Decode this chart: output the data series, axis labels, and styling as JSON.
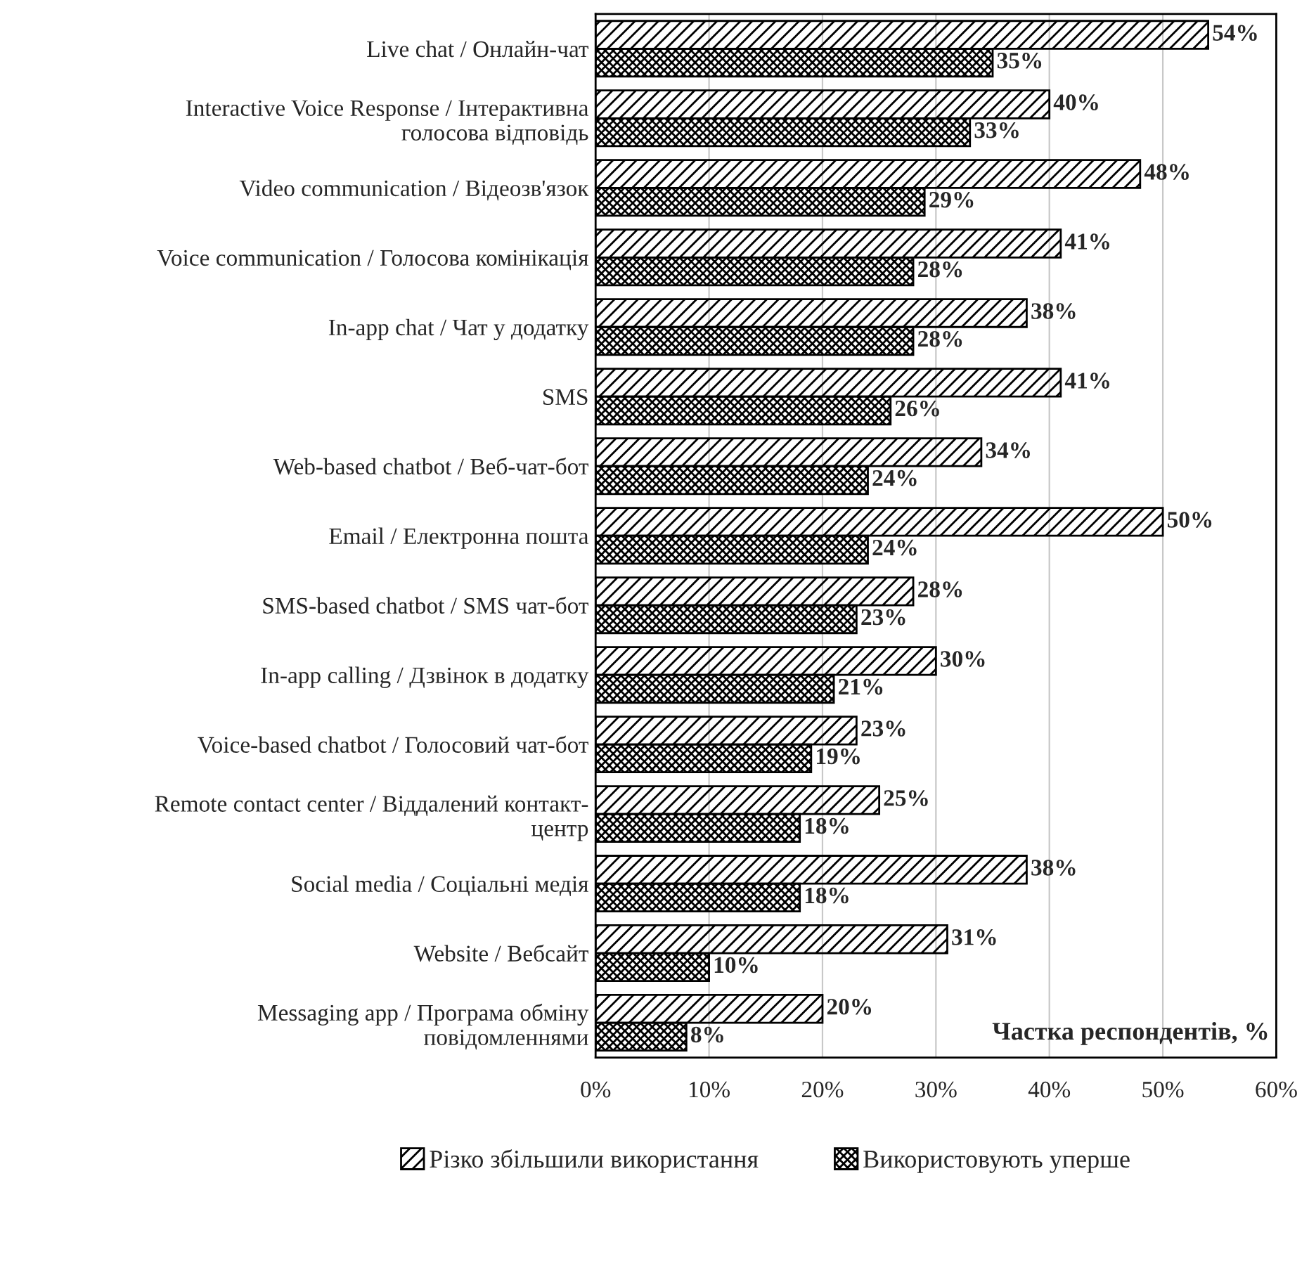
{
  "chart_data": {
    "type": "bar",
    "orientation": "horizontal",
    "xlabel": "Частка респондентів, %",
    "categories": [
      "Live chat / Онлайн-чат",
      "Interactive Voice Response / Інтерактивна\nголосова відповідь",
      "Video communication / Відеозв'язок",
      "Voice communication / Голосова комінікація",
      "In-app chat / Чат у додатку",
      "SMS",
      "Web-based chatbot / Веб-чат-бот",
      "Email / Електронна пошта",
      "SMS-based chatbot / SMS чат-бот",
      "In-app calling / Дзвінок в додатку",
      "Voice-based chatbot / Голосовий чат-бот",
      "Remote contact center / Віддалений контакт-\nцентр",
      "Social media / Соціальні медія",
      "Website / Вебсайт",
      "Messaging app / Програма обміну\nповідомленнями"
    ],
    "series": [
      {
        "name": "Різко збільшили використання",
        "color": "#000000",
        "values": [
          54,
          40,
          48,
          41,
          38,
          41,
          34,
          50,
          28,
          30,
          23,
          25,
          38,
          31,
          20
        ],
        "value_labels": [
          "54%",
          "40%",
          "48%",
          "41%",
          "38%",
          "41%",
          "34%",
          "50%",
          "28%",
          "30%",
          "23%",
          "25%",
          "38%",
          "31%",
          "20%"
        ]
      },
      {
        "name": "Використовують уперше",
        "color": "#000000",
        "values": [
          35,
          33,
          29,
          28,
          28,
          26,
          24,
          24,
          23,
          21,
          19,
          18,
          18,
          10,
          8
        ],
        "value_labels": [
          "35%",
          "33%",
          "29%",
          "28%",
          "28%",
          "26%",
          "24%",
          "24%",
          "23%",
          "21%",
          "19%",
          "18%",
          "18%",
          "10%",
          "8%"
        ]
      }
    ],
    "xlim": [
      0,
      60
    ],
    "xticks": [
      {
        "value": 0,
        "label": "0%"
      },
      {
        "value": 10,
        "label": "10%"
      },
      {
        "value": 20,
        "label": "20%"
      },
      {
        "value": 30,
        "label": "30%"
      },
      {
        "value": 40,
        "label": "40%"
      },
      {
        "value": 50,
        "label": "50%"
      },
      {
        "value": 60,
        "label": "60%"
      }
    ],
    "grid": "x",
    "legend": "bottom"
  }
}
